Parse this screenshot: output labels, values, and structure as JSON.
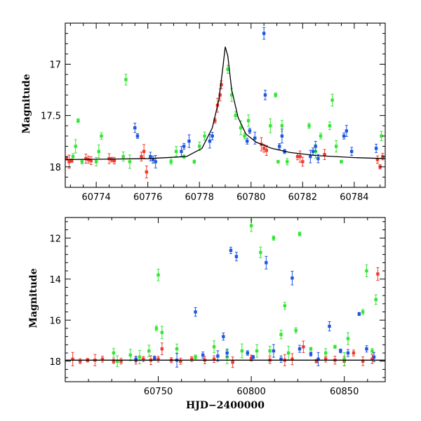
{
  "chart_data": [
    {
      "type": "scatter",
      "title": "",
      "xlabel": "",
      "ylabel": "Magnitude",
      "xlim": [
        60772.8,
        60785.2
      ],
      "ylim": [
        18.2,
        16.6
      ],
      "y_inverted": true,
      "xticks": [
        60774,
        60776,
        60778,
        60780,
        60782,
        60784
      ],
      "yticks": [
        17,
        17.5,
        18
      ],
      "colors": {
        "green": "#33e633",
        "red": "#f23a2e",
        "blue": "#1f56e0",
        "model": "#000000"
      },
      "model_curve": {
        "baseline": 17.93,
        "segments": [
          [
            60772.8,
            17.93
          ],
          [
            60776.0,
            17.92
          ],
          [
            60777.5,
            17.9
          ],
          [
            60778.1,
            17.82
          ],
          [
            60778.5,
            17.62
          ],
          [
            60778.75,
            17.35
          ],
          [
            60778.9,
            17.05
          ],
          [
            60779.0,
            16.83
          ],
          [
            60779.1,
            16.92
          ],
          [
            60779.25,
            17.25
          ],
          [
            60779.5,
            17.52
          ],
          [
            60779.8,
            17.68
          ],
          [
            60780.2,
            17.76
          ],
          [
            60780.8,
            17.82
          ],
          [
            60781.5,
            17.86
          ],
          [
            60782.5,
            17.89
          ],
          [
            60784.0,
            17.91
          ],
          [
            60785.2,
            17.92
          ]
        ]
      },
      "series": [
        {
          "color": "red",
          "x": [
            60772.85,
            60772.95,
            60773.05,
            60773.6,
            60773.7,
            60773.8,
            60774.5,
            60774.6,
            60774.7,
            60775.75,
            60775.85,
            60775.95,
            60778.6,
            60778.7,
            60778.8,
            60778.85,
            60780.4,
            60780.5,
            60780.6,
            60781.8,
            60781.9,
            60782.0,
            60782.85,
            60784.9,
            60785.0,
            60785.1
          ],
          "y": [
            17.92,
            17.95,
            17.94,
            17.92,
            17.93,
            17.94,
            17.92,
            17.93,
            17.94,
            17.9,
            17.85,
            18.05,
            17.55,
            17.4,
            17.3,
            17.2,
            17.78,
            17.82,
            17.84,
            17.9,
            17.9,
            17.95,
            17.88,
            17.93,
            18.0,
            17.9
          ]
        },
        {
          "color": "green",
          "x": [
            60773.1,
            60773.2,
            60773.3,
            60773.45,
            60774.0,
            60774.1,
            60774.2,
            60775.05,
            60775.15,
            60775.3,
            60776.9,
            60777.1,
            60777.4,
            60777.8,
            60778.0,
            60778.2,
            60779.1,
            60779.25,
            60779.4,
            60779.6,
            60779.75,
            60779.9,
            60780.75,
            60780.95,
            60781.05,
            60781.2,
            60781.4,
            60782.25,
            60782.5,
            60782.7,
            60783.05,
            60783.15,
            60783.3,
            60783.5,
            60785.05
          ],
          "y": [
            17.9,
            17.8,
            17.55,
            17.95,
            17.95,
            17.85,
            17.7,
            17.9,
            17.15,
            17.95,
            17.95,
            17.85,
            17.9,
            17.95,
            17.8,
            17.7,
            17.05,
            17.3,
            17.5,
            17.62,
            17.7,
            17.55,
            17.6,
            17.3,
            17.95,
            17.6,
            17.95,
            17.6,
            17.85,
            17.7,
            17.6,
            17.35,
            17.8,
            17.95,
            17.7
          ]
        },
        {
          "color": "blue",
          "x": [
            60775.5,
            60775.6,
            60776.1,
            60776.2,
            60776.3,
            60777.3,
            60777.4,
            60777.6,
            60778.4,
            60778.5,
            60779.85,
            60779.95,
            60780.15,
            60780.5,
            60780.55,
            60781.1,
            60781.2,
            60781.3,
            60782.3,
            60782.4,
            60782.5,
            60782.6,
            60783.6,
            60783.7,
            60783.9,
            60784.85
          ],
          "y": [
            17.62,
            17.7,
            17.9,
            17.93,
            17.95,
            17.85,
            17.8,
            17.75,
            17.75,
            17.7,
            17.75,
            17.65,
            17.72,
            16.7,
            17.3,
            17.8,
            17.7,
            17.85,
            17.9,
            17.85,
            17.8,
            17.92,
            17.7,
            17.65,
            17.85,
            17.82
          ]
        }
      ]
    },
    {
      "type": "scatter",
      "title": "",
      "xlabel": "HJD−2400000",
      "ylabel": "Magnitude",
      "xlim": [
        60700,
        60872
      ],
      "ylim": [
        19.0,
        11.0
      ],
      "y_inverted": true,
      "xticks": [
        60750,
        60800,
        60850
      ],
      "yticks": [
        12,
        14,
        16,
        18
      ],
      "colors": {
        "green": "#33e633",
        "red": "#f23a2e",
        "blue": "#1f56e0",
        "model": "#000000"
      },
      "model_curve": {
        "baseline": 17.95,
        "segments": [
          [
            60700,
            17.95
          ],
          [
            60872,
            17.95
          ]
        ]
      },
      "series": [
        {
          "color": "red",
          "x": [
            60704,
            60708,
            60712,
            60716,
            60720,
            60726,
            60730,
            60738,
            60742,
            60746,
            60750,
            60752,
            60757,
            60762,
            60768,
            60775,
            60780,
            60790,
            60800,
            60810,
            60818,
            60822,
            60828,
            60835,
            60840,
            60845,
            60850,
            60855,
            60860,
            60865,
            60868
          ],
          "y": [
            17.9,
            18.0,
            17.95,
            17.95,
            17.9,
            18.0,
            18.0,
            17.95,
            17.9,
            17.95,
            17.9,
            17.4,
            17.95,
            18.0,
            17.9,
            17.95,
            17.9,
            18.05,
            17.85,
            17.95,
            17.95,
            17.9,
            17.3,
            18.0,
            17.9,
            17.95,
            18.0,
            17.6,
            18.0,
            17.9,
            13.75
          ]
        },
        {
          "color": "green",
          "x": [
            60726,
            60728,
            60735,
            60740,
            60745,
            60749,
            60750,
            60752,
            60760,
            60770,
            60780,
            60787,
            60795,
            60800,
            60803,
            60805,
            60810,
            60812,
            60816,
            60818,
            60820,
            60824,
            60826,
            60832,
            60840,
            60845,
            60850,
            60852,
            60860,
            60862,
            60865,
            60867
          ],
          "y": [
            17.6,
            18.0,
            17.7,
            17.8,
            17.5,
            16.4,
            13.8,
            16.6,
            17.4,
            17.8,
            17.3,
            17.8,
            17.5,
            11.4,
            17.5,
            12.7,
            17.5,
            12.0,
            16.7,
            15.3,
            17.6,
            16.5,
            11.8,
            17.4,
            17.6,
            17.3,
            17.9,
            16.9,
            15.6,
            13.6,
            17.5,
            15.0
          ]
        },
        {
          "color": "blue",
          "x": [
            60738,
            60748,
            60760,
            60770,
            60774,
            60782,
            60785,
            60787,
            60789,
            60792,
            60798,
            60801,
            60808,
            60812,
            60816,
            60822,
            60826,
            60832,
            60836,
            60842,
            60848,
            60852,
            60858,
            60862,
            60866
          ],
          "y": [
            17.9,
            17.85,
            17.95,
            15.6,
            17.7,
            17.75,
            16.8,
            17.6,
            12.6,
            12.9,
            17.6,
            17.8,
            13.2,
            17.5,
            17.9,
            13.95,
            17.4,
            17.65,
            17.9,
            16.3,
            17.5,
            17.6,
            15.7,
            17.4,
            17.8
          ]
        }
      ]
    }
  ]
}
